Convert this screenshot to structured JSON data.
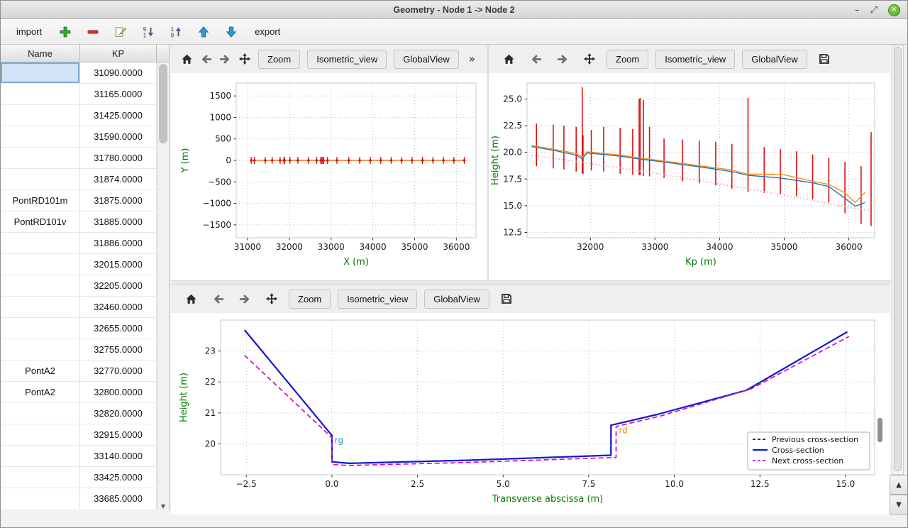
{
  "window": {
    "title": "Geometry - Node 1 -> Node 2",
    "controls": {
      "minimize": "–",
      "maximize": "⤢",
      "close": "✕"
    }
  },
  "toolbar": {
    "import_label": "import",
    "export_label": "export"
  },
  "table": {
    "columns": [
      "Name",
      "KP"
    ],
    "selected_row": 0,
    "rows": [
      {
        "name": "",
        "kp": "31090.0000"
      },
      {
        "name": "",
        "kp": "31165.0000"
      },
      {
        "name": "",
        "kp": "31425.0000"
      },
      {
        "name": "",
        "kp": "31590.0000"
      },
      {
        "name": "",
        "kp": "31780.0000"
      },
      {
        "name": "",
        "kp": "31874.0000"
      },
      {
        "name": "PontRD101m",
        "kp": "31875.0000"
      },
      {
        "name": "PontRD101v",
        "kp": "31885.0000"
      },
      {
        "name": "",
        "kp": "31886.0000"
      },
      {
        "name": "",
        "kp": "32015.0000"
      },
      {
        "name": "",
        "kp": "32205.0000"
      },
      {
        "name": "",
        "kp": "32460.0000"
      },
      {
        "name": "",
        "kp": "32655.0000"
      },
      {
        "name": "",
        "kp": "32755.0000"
      },
      {
        "name": "PontA2",
        "kp": "32770.0000"
      },
      {
        "name": "PontA2",
        "kp": "32800.0000"
      },
      {
        "name": "",
        "kp": "32820.0000"
      },
      {
        "name": "",
        "kp": "32915.0000"
      },
      {
        "name": "",
        "kp": "33140.0000"
      },
      {
        "name": "",
        "kp": "33425.0000"
      },
      {
        "name": "",
        "kp": "33685.0000"
      }
    ]
  },
  "plot_toolbar": {
    "zoom": "Zoom",
    "isometric": "Isometric_view",
    "globalview": "GlobalView",
    "overflow": "»"
  },
  "icons": {
    "scroll_up": "▲",
    "scroll_down": "▼",
    "table_scroll_down": "▼"
  },
  "colors": {
    "axis_label": "#007a00",
    "grid": "#b9b9b9",
    "red_marker": "#e01010"
  },
  "chart_data": [
    {
      "id": "plan-view",
      "type": "line",
      "title": "",
      "xlabel": "X (m)",
      "ylabel": "Y (m)",
      "xlim": [
        30730,
        36470
      ],
      "ylim": [
        -1800,
        1800
      ],
      "xticks": [
        31000,
        32000,
        33000,
        34000,
        35000,
        36000
      ],
      "xtick_labels": [
        "31000",
        "32000",
        "33000",
        "34000",
        "35000",
        "36000"
      ],
      "yticks": [
        -1500,
        -1000,
        -500,
        0,
        500,
        1000,
        1500
      ],
      "ytick_labels": [
        "−1500",
        "−1000",
        "−500",
        "0",
        "500",
        "1000",
        "1500"
      ],
      "margins": {
        "l": 92,
        "r": 16,
        "t": 14,
        "b": 60,
        "ylabel_dx": 24
      },
      "series": [
        {
          "name": "river-axis",
          "color": "#f07820",
          "dash": "solid",
          "width": 1.5,
          "points": [
            [
              31090,
              0
            ],
            [
              36200,
              0
            ]
          ]
        }
      ],
      "markers": {
        "color": "#e01010",
        "y": 0,
        "x": [
          31090,
          31165,
          31425,
          31590,
          31780,
          31874,
          31885,
          31886,
          32015,
          32205,
          32460,
          32655,
          32755,
          32770,
          32800,
          32820,
          32915,
          33140,
          33425,
          33685,
          33940,
          34190,
          34440,
          34690,
          34940,
          35190,
          35440,
          35690,
          35940,
          36190
        ]
      }
    },
    {
      "id": "long-profile",
      "type": "line",
      "title": "",
      "xlabel": "Kp (m)",
      "ylabel": "Height (m)",
      "xlim": [
        31020,
        36400
      ],
      "ylim": [
        12.0,
        26.5
      ],
      "xticks": [
        32000,
        33000,
        34000,
        35000,
        36000
      ],
      "xtick_labels": [
        "32000",
        "33000",
        "34000",
        "35000",
        "36000"
      ],
      "yticks": [
        12.5,
        15.0,
        17.5,
        20.0,
        22.5,
        25.0
      ],
      "ytick_labels": [
        "12.5",
        "15.0",
        "17.5",
        "20.0",
        "22.5",
        "25.0"
      ],
      "margins": {
        "l": 54,
        "r": 22,
        "t": 14,
        "b": 60,
        "ylabel_dx": 13
      },
      "series": [
        {
          "name": "left-bank",
          "color": "#1f77b4",
          "dash": "solid",
          "width": 1.4,
          "points": [
            [
              31090,
              20.55
            ],
            [
              31425,
              20.2
            ],
            [
              31780,
              19.75
            ],
            [
              31874,
              19.4
            ],
            [
              31950,
              19.95
            ],
            [
              32205,
              19.8
            ],
            [
              32460,
              19.65
            ],
            [
              32800,
              19.35
            ],
            [
              33140,
              19.1
            ],
            [
              33685,
              18.65
            ],
            [
              34190,
              18.2
            ],
            [
              34440,
              17.85
            ],
            [
              34940,
              17.6
            ],
            [
              35440,
              17.15
            ],
            [
              35690,
              16.8
            ],
            [
              35940,
              15.7
            ],
            [
              36100,
              14.95
            ],
            [
              36250,
              15.3
            ]
          ]
        },
        {
          "name": "right-bank",
          "color": "#ff8a1e",
          "dash": "solid",
          "width": 1.4,
          "points": [
            [
              31090,
              20.65
            ],
            [
              31425,
              20.3
            ],
            [
              31780,
              19.9
            ],
            [
              31874,
              19.55
            ],
            [
              31950,
              20.05
            ],
            [
              32205,
              19.9
            ],
            [
              32460,
              19.75
            ],
            [
              32800,
              19.45
            ],
            [
              33140,
              19.2
            ],
            [
              33685,
              18.75
            ],
            [
              34190,
              18.35
            ],
            [
              34440,
              17.95
            ],
            [
              34690,
              17.95
            ],
            [
              35000,
              17.9
            ],
            [
              35440,
              17.3
            ],
            [
              35690,
              17.0
            ],
            [
              35940,
              16.2
            ],
            [
              36100,
              15.3
            ],
            [
              36250,
              16.25
            ]
          ]
        },
        {
          "name": "bed-line",
          "color": "#f2a6bc",
          "dash": "dotted",
          "width": 1.8,
          "points": [
            [
              31090,
              19.75
            ],
            [
              32000,
              18.95
            ],
            [
              33000,
              18.05
            ],
            [
              34000,
              17.05
            ],
            [
              35000,
              16.0
            ],
            [
              35900,
              14.95
            ],
            [
              36330,
              14.55
            ]
          ]
        }
      ],
      "vlines": {
        "color": "#e01010",
        "width": 1.6,
        "items": [
          [
            31165,
            18.7,
            22.7
          ],
          [
            31425,
            18.5,
            22.6
          ],
          [
            31590,
            18.4,
            22.5
          ],
          [
            31780,
            18.2,
            22.4
          ],
          [
            31874,
            18.0,
            26.1
          ],
          [
            31886,
            18.0,
            21.6
          ],
          [
            32015,
            18.3,
            22.1
          ],
          [
            32205,
            18.2,
            22.4
          ],
          [
            32460,
            18.0,
            22.3
          ],
          [
            32655,
            17.9,
            22.2
          ],
          [
            32755,
            17.85,
            25.0
          ],
          [
            32770,
            17.85,
            25.1
          ],
          [
            32820,
            17.8,
            24.9
          ],
          [
            32915,
            17.75,
            22.4
          ],
          [
            33140,
            17.6,
            21.3
          ],
          [
            33425,
            17.3,
            21.2
          ],
          [
            33685,
            17.1,
            21.1
          ],
          [
            33940,
            16.9,
            21.0
          ],
          [
            34190,
            16.6,
            20.8
          ],
          [
            34440,
            16.3,
            25.1
          ],
          [
            34690,
            16.2,
            20.5
          ],
          [
            34940,
            16.1,
            20.3
          ],
          [
            35190,
            15.9,
            20.1
          ],
          [
            35440,
            15.6,
            19.8
          ],
          [
            35690,
            15.3,
            19.5
          ],
          [
            35940,
            14.3,
            19.1
          ],
          [
            36190,
            13.3,
            18.7
          ],
          [
            36345,
            13.1,
            21.9
          ]
        ]
      }
    },
    {
      "id": "cross-section",
      "type": "line",
      "title": "",
      "xlabel": "Transverse abscissa (m)",
      "ylabel": "Height (m)",
      "xlim": [
        -3.25,
        15.85
      ],
      "ylim": [
        19.0,
        24.0
      ],
      "xticks": [
        -2.5,
        0,
        2.5,
        5,
        7.5,
        10,
        12.5,
        15
      ],
      "xtick_labels": [
        "−2.5",
        "0.0",
        "2.5",
        "5.0",
        "7.5",
        "10.0",
        "12.5",
        "15.0"
      ],
      "yticks": [
        20,
        21,
        22,
        23
      ],
      "ytick_labels": [
        "20",
        "21",
        "22",
        "23"
      ],
      "margins": {
        "l": 70,
        "r": 22,
        "t": 10,
        "b": 56,
        "ylabel_dx": 22
      },
      "series": [
        {
          "name": "previous",
          "legend": "Previous cross-section",
          "color": "#111111",
          "dash": "dashed",
          "width": 1.8,
          "points": [
            [
              -2.55,
              23.68
            ],
            [
              0,
              20.27
            ],
            [
              0,
              19.42
            ],
            [
              0.5,
              19.37
            ],
            [
              4,
              19.47
            ],
            [
              8.15,
              19.63
            ],
            [
              8.15,
              20.6
            ],
            [
              9.5,
              20.95
            ],
            [
              12.1,
              21.73
            ],
            [
              15.05,
              23.62
            ]
          ]
        },
        {
          "name": "current",
          "legend": "Cross-section",
          "color": "#1418d2",
          "dash": "solid",
          "width": 2.2,
          "points": [
            [
              -2.55,
              23.68
            ],
            [
              0,
              20.27
            ],
            [
              0,
              19.42
            ],
            [
              0.5,
              19.37
            ],
            [
              4,
              19.47
            ],
            [
              8.15,
              19.63
            ],
            [
              8.15,
              20.6
            ],
            [
              9.5,
              20.95
            ],
            [
              12.1,
              21.73
            ],
            [
              15.05,
              23.62
            ]
          ]
        },
        {
          "name": "next",
          "legend": "Next cross-section",
          "color": "#c313c3",
          "dash": "dashed",
          "width": 1.7,
          "points": [
            [
              -2.55,
              22.86
            ],
            [
              0,
              20.2
            ],
            [
              0,
              19.33
            ],
            [
              0.5,
              19.3
            ],
            [
              4,
              19.4
            ],
            [
              8.3,
              19.56
            ],
            [
              8.3,
              20.56
            ],
            [
              9.6,
              20.9
            ],
            [
              12.25,
              21.78
            ],
            [
              15.1,
              23.47
            ]
          ]
        }
      ],
      "annotations": [
        {
          "text": "rg",
          "x": 0.08,
          "y": 20.02,
          "color": "#2f9ec9"
        },
        {
          "text": "rd",
          "x": 8.38,
          "y": 20.34,
          "color": "#e8821e"
        }
      ],
      "legend": {
        "position": "bottom-right"
      }
    }
  ]
}
